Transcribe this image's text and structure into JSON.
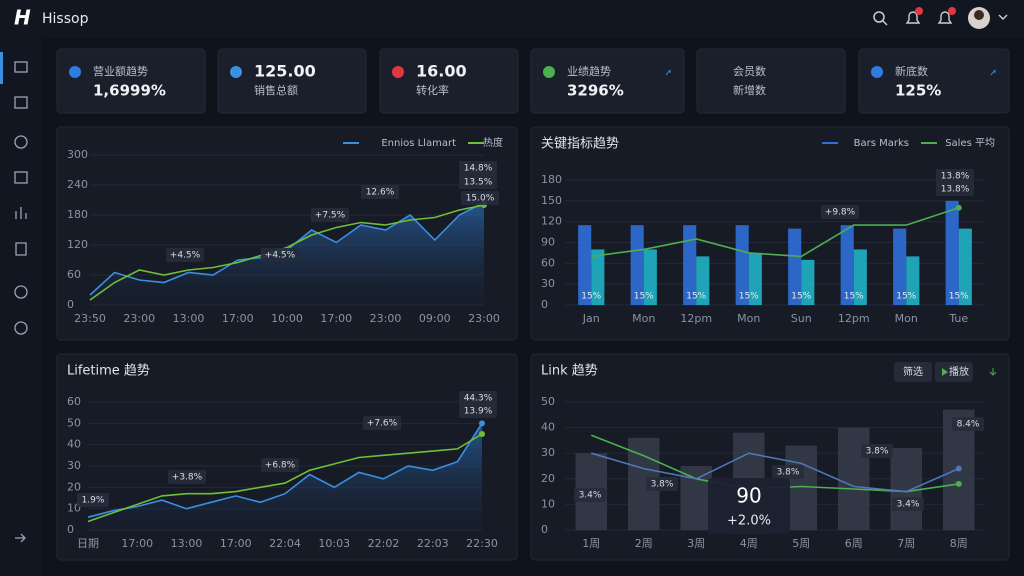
{
  "header": {
    "brand": "Hissop"
  },
  "kpis": [
    {
      "label": "营业额趋势",
      "value": "1,6999%"
    },
    {
      "value": "125.00",
      "sub": "销售总额"
    },
    {
      "value": "16.00",
      "sub": "转化率"
    },
    {
      "label": "业绩趋势",
      "value": "3296%"
    },
    {
      "label": "会员数",
      "sub": "新增数"
    },
    {
      "label": "新底数",
      "value": "125%"
    }
  ],
  "chart_data": [
    {
      "type": "line",
      "categories": [
        "23:50",
        null,
        "23:00",
        null,
        "13:00",
        null,
        "17:00",
        null,
        "10:00",
        null,
        "17:00",
        null,
        "23:00",
        null,
        "09:00",
        null,
        "23:00"
      ],
      "series": [
        {
          "name": "Ennios Llamart",
          "color": "#3a8fe0",
          "area": true,
          "values": [
            20,
            65,
            50,
            45,
            65,
            60,
            90,
            95,
            110,
            150,
            125,
            160,
            150,
            180,
            130,
            180,
            205
          ]
        },
        {
          "name": "热度",
          "color": "#6fbf3a",
          "values": [
            10,
            45,
            70,
            60,
            70,
            75,
            85,
            100,
            115,
            140,
            155,
            165,
            160,
            170,
            175,
            190,
            200
          ]
        }
      ],
      "ylim": [
        0,
        300
      ],
      "yticks": [
        0,
        60,
        120,
        180,
        240,
        300
      ],
      "grid": true,
      "annotations": [
        "+4.5%",
        "+4.5%",
        "+7.5%",
        "12.6%",
        "14.8%",
        "13.5%",
        "15.0%"
      ]
    },
    {
      "type": "combo",
      "title": "关键指标趋势",
      "categories": [
        "Jan",
        "Mon",
        "12pm",
        "Mon",
        "Sun",
        "12pm",
        "Mon",
        "Tue"
      ],
      "series": [
        {
          "name": "Bars Marks",
          "color": "#2f6fd8",
          "kind": "bar",
          "values": [
            115,
            115,
            115,
            115,
            110,
            115,
            110,
            150
          ]
        },
        {
          "color": "#20b3c6",
          "kind": "bar",
          "values": [
            80,
            80,
            70,
            75,
            65,
            80,
            70,
            110
          ]
        },
        {
          "name": "Sales 平均",
          "color": "#4caf50",
          "kind": "line",
          "values": [
            70,
            80,
            95,
            75,
            70,
            115,
            115,
            140
          ]
        }
      ],
      "ylim": [
        0,
        180
      ],
      "yticks": [
        0,
        30,
        60,
        90,
        120,
        150,
        180
      ],
      "grid": true,
      "bar_labels": [
        "15%",
        "15%",
        "15%",
        "15%",
        "15%",
        "15%",
        "15%",
        "15%"
      ],
      "annotations": [
        "+9.8%",
        "13.8%",
        "13.8%"
      ]
    },
    {
      "type": "line",
      "title": "Lifetime 趋势",
      "categories": [
        "日期",
        null,
        "17:00",
        null,
        "13:00",
        null,
        "17:00",
        null,
        "22:04",
        null,
        "10:03",
        null,
        "22:02",
        null,
        "22:03",
        null,
        "22:30"
      ],
      "series": [
        {
          "color": "#3a8fe0",
          "area": true,
          "values": [
            6,
            9,
            11,
            14,
            10,
            13,
            16,
            13,
            17,
            26,
            20,
            27,
            24,
            30,
            28,
            32,
            50
          ]
        },
        {
          "color": "#6fbf3a",
          "values": [
            4,
            8,
            12,
            16,
            17,
            17,
            18,
            20,
            22,
            28,
            31,
            34,
            35,
            36,
            37,
            38,
            45
          ]
        }
      ],
      "ylim": [
        0,
        60
      ],
      "yticks": [
        0,
        10,
        20,
        30,
        40,
        50,
        60
      ],
      "grid": true,
      "annotations": [
        "1.9%",
        "+3.8%",
        "+6.8%",
        "+7.6%",
        "44.3%",
        "13.9%"
      ]
    },
    {
      "type": "combo",
      "title": "Link 趋势",
      "categories": [
        "1周",
        "2周",
        "3周",
        "4周",
        "5周",
        "6周",
        "7周",
        "8周"
      ],
      "series": [
        {
          "color": "#353b4a",
          "kind": "bar",
          "values": [
            30,
            36,
            25,
            38,
            33,
            40,
            32,
            47
          ]
        },
        {
          "color": "#4caf50",
          "kind": "line",
          "values": [
            37,
            29,
            20,
            16,
            17,
            16,
            15,
            18
          ]
        },
        {
          "color": "#4f77b8",
          "kind": "line",
          "values": [
            30,
            24,
            20,
            30,
            26,
            17,
            15,
            24
          ]
        }
      ],
      "ylim": [
        0,
        50
      ],
      "yticks": [
        0,
        10,
        20,
        30,
        40,
        50
      ],
      "grid": true,
      "buttons": [
        "筛选",
        "播放"
      ],
      "callout": {
        "value": "90",
        "change": "+2.0%"
      },
      "annotations": [
        "3.4%",
        "3.8%",
        "3.8%",
        "3.8%",
        "3.4%",
        "8.4%"
      ]
    }
  ]
}
